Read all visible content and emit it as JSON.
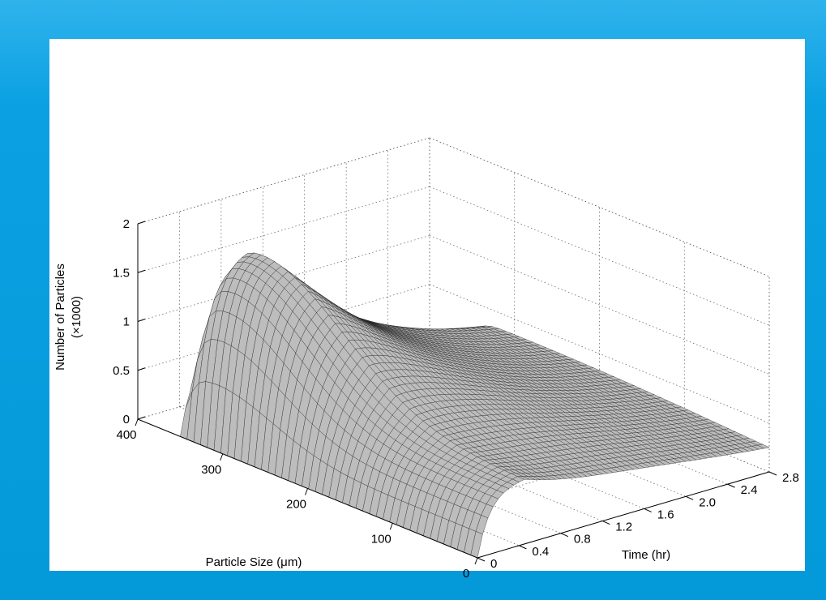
{
  "chart_data": {
    "type": "surface",
    "title": "",
    "xlabel": "Particle Size (μm)",
    "ylabel": "Time (hr)",
    "zlabel": "Number of Particles",
    "zlabel_unit": "(×1000)",
    "x_ticks": [
      "400",
      "300",
      "200",
      "100",
      "0"
    ],
    "y_ticks": [
      "0",
      "0.4",
      "0.8",
      "1.2",
      "1.6",
      "2.0",
      "2.4",
      "2.8"
    ],
    "z_ticks": [
      "0",
      "0.5",
      "1",
      "1.5",
      "2"
    ],
    "xlim": [
      0,
      400
    ],
    "ylim": [
      0,
      2.8
    ],
    "zlim": [
      0,
      2
    ],
    "grid": true,
    "surface": {
      "size_start": 350,
      "size_end": 0,
      "time_start": 0,
      "time_end": 2.8,
      "initial_peak_size": 340,
      "peak_height": 1.9,
      "peak_time": 0.45,
      "end_height": 0.05,
      "face_color": "#bdbdbd",
      "mesh_color": "#1a1a1a"
    }
  }
}
